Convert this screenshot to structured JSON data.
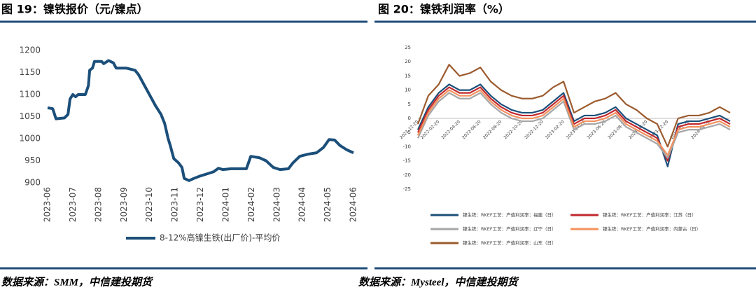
{
  "chart_data": [
    {
      "type": "line",
      "title": "图 19：镍铁报价（元/镍点）",
      "source": "数据来源：SMM，中信建投期货",
      "x": [
        0,
        0.2,
        0.33,
        0.66,
        0.8,
        0.88,
        0.99,
        1.1,
        1.2,
        1.48,
        1.6,
        1.65,
        1.76,
        1.84,
        2.12,
        2.2,
        2.39,
        2.58,
        2.69,
        3.08,
        3.43,
        3.57,
        3.9,
        4.23,
        4.45,
        4.59,
        4.73,
        4.81,
        4.95,
        5.14,
        5.27,
        5.36,
        5.55,
        5.74,
        5.96,
        6.24,
        6.51,
        6.7,
        6.87,
        7.2,
        7.8,
        7.97,
        8.3,
        8.57,
        8.85,
        9.12,
        9.45,
        9.62,
        9.89,
        10.22,
        10.55,
        10.82,
        11.04,
        11.26,
        11.46,
        11.73,
        12
      ],
      "xlim": [
        0,
        12
      ],
      "xticks": [
        {
          "value": 0,
          "label": "2023-06"
        },
        {
          "value": 1,
          "label": "2023-07"
        },
        {
          "value": 2,
          "label": "2023-08"
        },
        {
          "value": 3,
          "label": "2023-09"
        },
        {
          "value": 4,
          "label": "2023-10"
        },
        {
          "value": 5,
          "label": "2023-11"
        },
        {
          "value": 6,
          "label": "2023-12"
        },
        {
          "value": 7,
          "label": "2024-01"
        },
        {
          "value": 8,
          "label": "2024-02"
        },
        {
          "value": 9,
          "label": "2024-03"
        },
        {
          "value": 10,
          "label": "2024-04"
        },
        {
          "value": 11,
          "label": "2024-05"
        },
        {
          "value": 12,
          "label": "2024-06"
        }
      ],
      "ylim": [
        900,
        1200
      ],
      "yticks": [
        900,
        950,
        1000,
        1050,
        1100,
        1150,
        1200
      ],
      "grid": false,
      "legend": "bottom",
      "series": [
        {
          "name": "8-12%高镍生铁(出厂价)-平均价",
          "color": "#1b4f7a",
          "values": [
            1070,
            1068,
            1045,
            1047,
            1055,
            1090,
            1100,
            1095,
            1100,
            1100,
            1120,
            1155,
            1160,
            1175,
            1175,
            1170,
            1177,
            1172,
            1160,
            1160,
            1155,
            1145,
            1110,
            1075,
            1055,
            1035,
            1000,
            985,
            955,
            945,
            935,
            910,
            905,
            910,
            915,
            920,
            925,
            933,
            930,
            932,
            932,
            960,
            957,
            950,
            935,
            930,
            932,
            945,
            960,
            965,
            968,
            980,
            998,
            997,
            985,
            975,
            968
          ]
        }
      ]
    },
    {
      "type": "line",
      "title": "图 20：镍铁利润率（%）",
      "source": "数据来源：Mysteel，中信建投期货",
      "x": [
        0,
        1,
        2,
        3,
        4,
        5,
        6,
        7,
        8,
        9,
        10,
        11,
        12,
        13,
        14,
        15,
        16,
        17,
        18,
        19,
        20,
        21,
        22,
        23,
        24,
        25,
        26,
        27,
        28,
        29,
        30
      ],
      "xlim": [
        0,
        30
      ],
      "xticks": [
        {
          "value": 0,
          "label": "2021-12-20"
        },
        {
          "value": 2,
          "label": "2022-02-20"
        },
        {
          "value": 4,
          "label": "2022-04-20"
        },
        {
          "value": 6,
          "label": "2022-06-20"
        },
        {
          "value": 8,
          "label": "2022-08-20"
        },
        {
          "value": 10,
          "label": "2022-10-20"
        },
        {
          "value": 12,
          "label": "2022-12-20"
        },
        {
          "value": 14,
          "label": "2023-02-20"
        },
        {
          "value": 16,
          "label": "2023-04-20"
        },
        {
          "value": 18,
          "label": "2023-06-20"
        },
        {
          "value": 20,
          "label": "2023-08-20"
        },
        {
          "value": 22,
          "label": "2023-10-20"
        },
        {
          "value": 24,
          "label": "2023-12-20"
        },
        {
          "value": 26,
          "label": "2024-02-20"
        },
        {
          "value": 28,
          "label": "2024-04-20"
        }
      ],
      "ylim": [
        -25,
        25
      ],
      "yticks": [
        -25,
        -20,
        -15,
        -10,
        -5,
        0,
        5,
        10,
        15,
        20,
        25
      ],
      "grid": false,
      "legend": "bottom",
      "series": [
        {
          "name": "镍生铁：RKEF工艺：产值利润率：福建（日）",
          "color": "#1b4f7a",
          "values": [
            -4,
            4,
            9,
            12,
            10,
            10,
            12,
            8,
            5,
            3,
            2,
            2,
            3,
            6,
            9,
            -1,
            1,
            1,
            2,
            4,
            0,
            -2,
            -4,
            -6,
            -17,
            -2,
            -1,
            -1,
            0,
            1,
            -1
          ]
        },
        {
          "name": "镍生铁：RKEF工艺：产值利润率：江苏（日）",
          "color": "#c0282d",
          "values": [
            -5,
            3,
            8,
            11,
            9,
            9,
            11,
            7,
            4,
            2,
            1,
            1,
            2,
            5,
            8,
            -2,
            0,
            0,
            1,
            3,
            -1,
            -3,
            -5,
            -7,
            -15,
            -3,
            -2,
            -2,
            -1,
            0,
            -2
          ]
        },
        {
          "name": "镍生铁：RKEF工艺：产值利润率：辽宁（日）",
          "color": "#a6a6a6",
          "values": [
            -7,
            1,
            6,
            9,
            7,
            7,
            9,
            5,
            2,
            0,
            -1,
            -1,
            0,
            3,
            6,
            -4,
            -2,
            -2,
            -1,
            1,
            -3,
            -5,
            -7,
            -9,
            -14,
            -5,
            -4,
            -4,
            -3,
            -2,
            -4
          ]
        },
        {
          "name": "镍生铁：RKEF工艺：产值利润率：内蒙古（日）",
          "color": "#f4915e",
          "values": [
            -6,
            2,
            7,
            10,
            8,
            8,
            10,
            6,
            3,
            1,
            0,
            0,
            1,
            4,
            7,
            -3,
            -1,
            -1,
            0,
            2,
            -2,
            -4,
            -6,
            -8,
            -13,
            -4,
            -3,
            -3,
            -2,
            -1,
            -3
          ]
        },
        {
          "name": "镍生铁：RKEF工艺：产值利润率：山东（日）",
          "color": "#9c5b2e",
          "values": [
            -2,
            8,
            12,
            19,
            15,
            16,
            18,
            13,
            10,
            8,
            7,
            7,
            8,
            11,
            13,
            2,
            4,
            6,
            7,
            9,
            5,
            3,
            0,
            -2,
            -10,
            0,
            1,
            1,
            2,
            4,
            2
          ]
        }
      ]
    }
  ]
}
